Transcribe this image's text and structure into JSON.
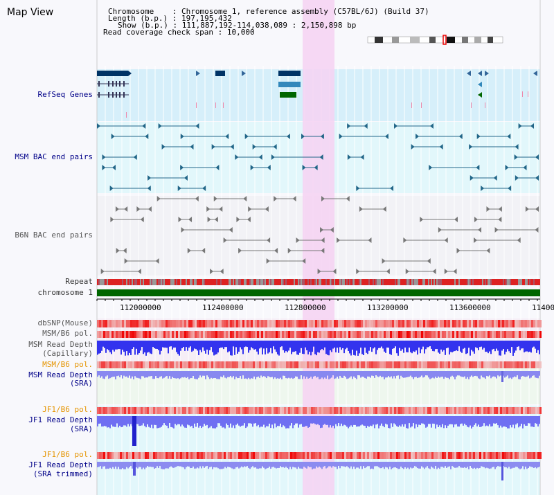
{
  "header": {
    "title": "Map View",
    "chromosome_label": "Chromosome",
    "chromosome_value": "Chromosome 1, reference assembly (C57BL/6J) (Build 37)",
    "length_label": "Length (b.p.)",
    "length_value": "197,195,432",
    "show_label": "Show (b.p.)",
    "show_value": "111,887,192-114,038,089 : 2,150,898 bp",
    "coverage_label": "Read coverage check span",
    "coverage_value": "10,000"
  },
  "tracks": {
    "refseq": "RefSeq Genes",
    "msm_bac": "MSM BAC end pairs",
    "b6n_bac": "B6N BAC end pairs",
    "repeat": "Repeat",
    "chromosome": "chromosome 1",
    "dbsnp": "dbSNP(Mouse)",
    "msm_b6_pol_1": "MSM/B6 pol.",
    "msm_read_depth_cap_1": "MSM Read Depth",
    "msm_read_depth_cap_2": "(Capillary)",
    "msm_b6_pol_2": "MSM/B6 pol.",
    "msm_read_depth_sra_1": "MSM Read Depth",
    "msm_read_depth_sra_2": "(SRA)",
    "jf1_b6_pol_1": "JF1/B6 pol.",
    "jf1_read_depth_sra_1": "JF1 Read Depth",
    "jf1_read_depth_sra_2": "(SRA)",
    "jf1_b6_pol_2": "JF1/B6 pol.",
    "jf1_read_depth_trim_1": "JF1 Read Depth",
    "jf1_read_depth_trim_2": "(SRA trimmed)"
  },
  "axis": {
    "ticks": [
      "112000000",
      "112400000",
      "112800000",
      "113200000",
      "113600000",
      "11400"
    ]
  },
  "colors": {
    "refseq_bg": "#d6effa",
    "bac_bg": "#e2f7fb",
    "highlight": "#f6d2f2",
    "chromosome_bar": "#006600",
    "depth_bar": "#3333ee",
    "msm_label": "#000088",
    "pol_label": "#e59400"
  }
}
